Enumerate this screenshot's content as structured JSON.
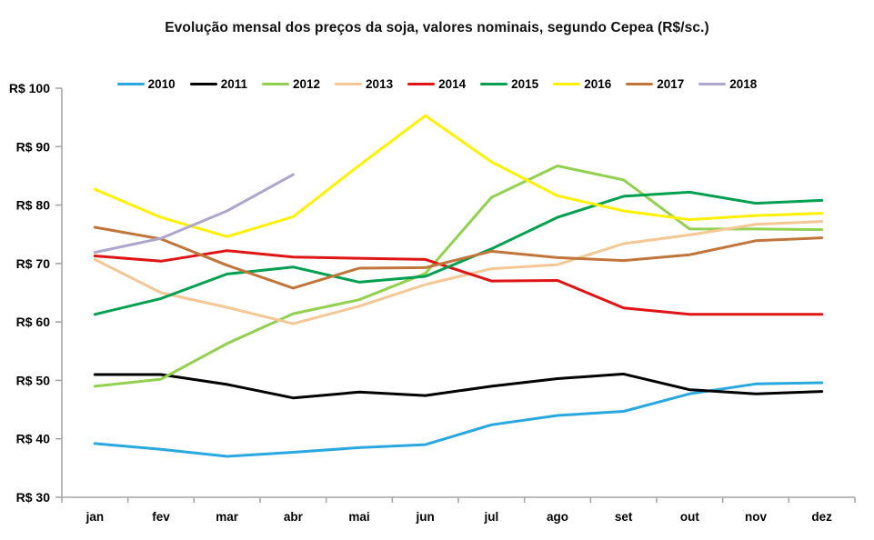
{
  "title": "Evolução mensal dos preços da soja, valores nominais, segundo Cepea (R$/sc.)",
  "chart_data": {
    "type": "line",
    "title": "Evolução mensal dos preços da soja, valores nominais, segundo Cepea (R$/sc.)",
    "x": [
      "jan",
      "fev",
      "mar",
      "abr",
      "mai",
      "jun",
      "jul",
      "ago",
      "set",
      "out",
      "nov",
      "dez"
    ],
    "xlabel": "",
    "ylabel": "",
    "ylim": [
      30,
      100
    ],
    "y_ticks": [
      30,
      40,
      50,
      60,
      70,
      80,
      90,
      100
    ],
    "y_tick_labels": [
      "R$ 30",
      "R$ 40",
      "R$ 50",
      "R$ 60",
      "R$ 70",
      "R$ 80",
      "R$ 90",
      "R$ 100"
    ],
    "grid": false,
    "legend_position": "top",
    "axis_color": "#a6a6a6",
    "series": [
      {
        "name": "2010",
        "color": "#29a8df",
        "values": [
          39.2,
          38.2,
          37.0,
          37.7,
          38.5,
          39.0,
          42.4,
          44.0,
          44.7,
          47.7,
          49.4,
          49.6
        ]
      },
      {
        "name": "2011",
        "color": "#000000",
        "values": [
          51.0,
          51.0,
          49.3,
          47.0,
          48.0,
          47.4,
          49.0,
          50.3,
          51.1,
          48.4,
          47.7,
          48.1
        ]
      },
      {
        "name": "2012",
        "color": "#92d050",
        "values": [
          49.0,
          50.2,
          56.3,
          61.4,
          63.8,
          68.3,
          81.3,
          86.7,
          84.3,
          75.9,
          75.9,
          75.8
        ]
      },
      {
        "name": "2013",
        "color": "#f4c794",
        "values": [
          70.7,
          65.0,
          62.5,
          59.7,
          62.7,
          66.4,
          69.1,
          69.8,
          73.4,
          74.9,
          76.7,
          77.2
        ]
      },
      {
        "name": "2014",
        "color": "#e01414",
        "values": [
          71.3,
          70.4,
          72.2,
          71.1,
          70.9,
          70.7,
          67.0,
          67.1,
          62.4,
          61.3,
          61.3,
          61.3
        ]
      },
      {
        "name": "2015",
        "color": "#00a050",
        "values": [
          61.3,
          64.0,
          68.2,
          69.4,
          66.8,
          67.8,
          72.5,
          77.9,
          81.5,
          82.2,
          80.3,
          80.8
        ]
      },
      {
        "name": "2016",
        "color": "#fff100",
        "values": [
          82.7,
          77.9,
          74.6,
          78.0,
          86.8,
          95.3,
          87.4,
          81.6,
          79.0,
          77.5,
          78.2,
          78.6
        ]
      },
      {
        "name": "2017",
        "color": "#c1753b",
        "values": [
          76.2,
          74.2,
          69.7,
          65.8,
          69.2,
          69.3,
          72.1,
          71.0,
          70.5,
          71.5,
          73.9,
          74.4
        ]
      },
      {
        "name": "2018",
        "color": "#aea5cd",
        "values": [
          71.9,
          74.3,
          79.0,
          85.2
        ]
      }
    ]
  }
}
